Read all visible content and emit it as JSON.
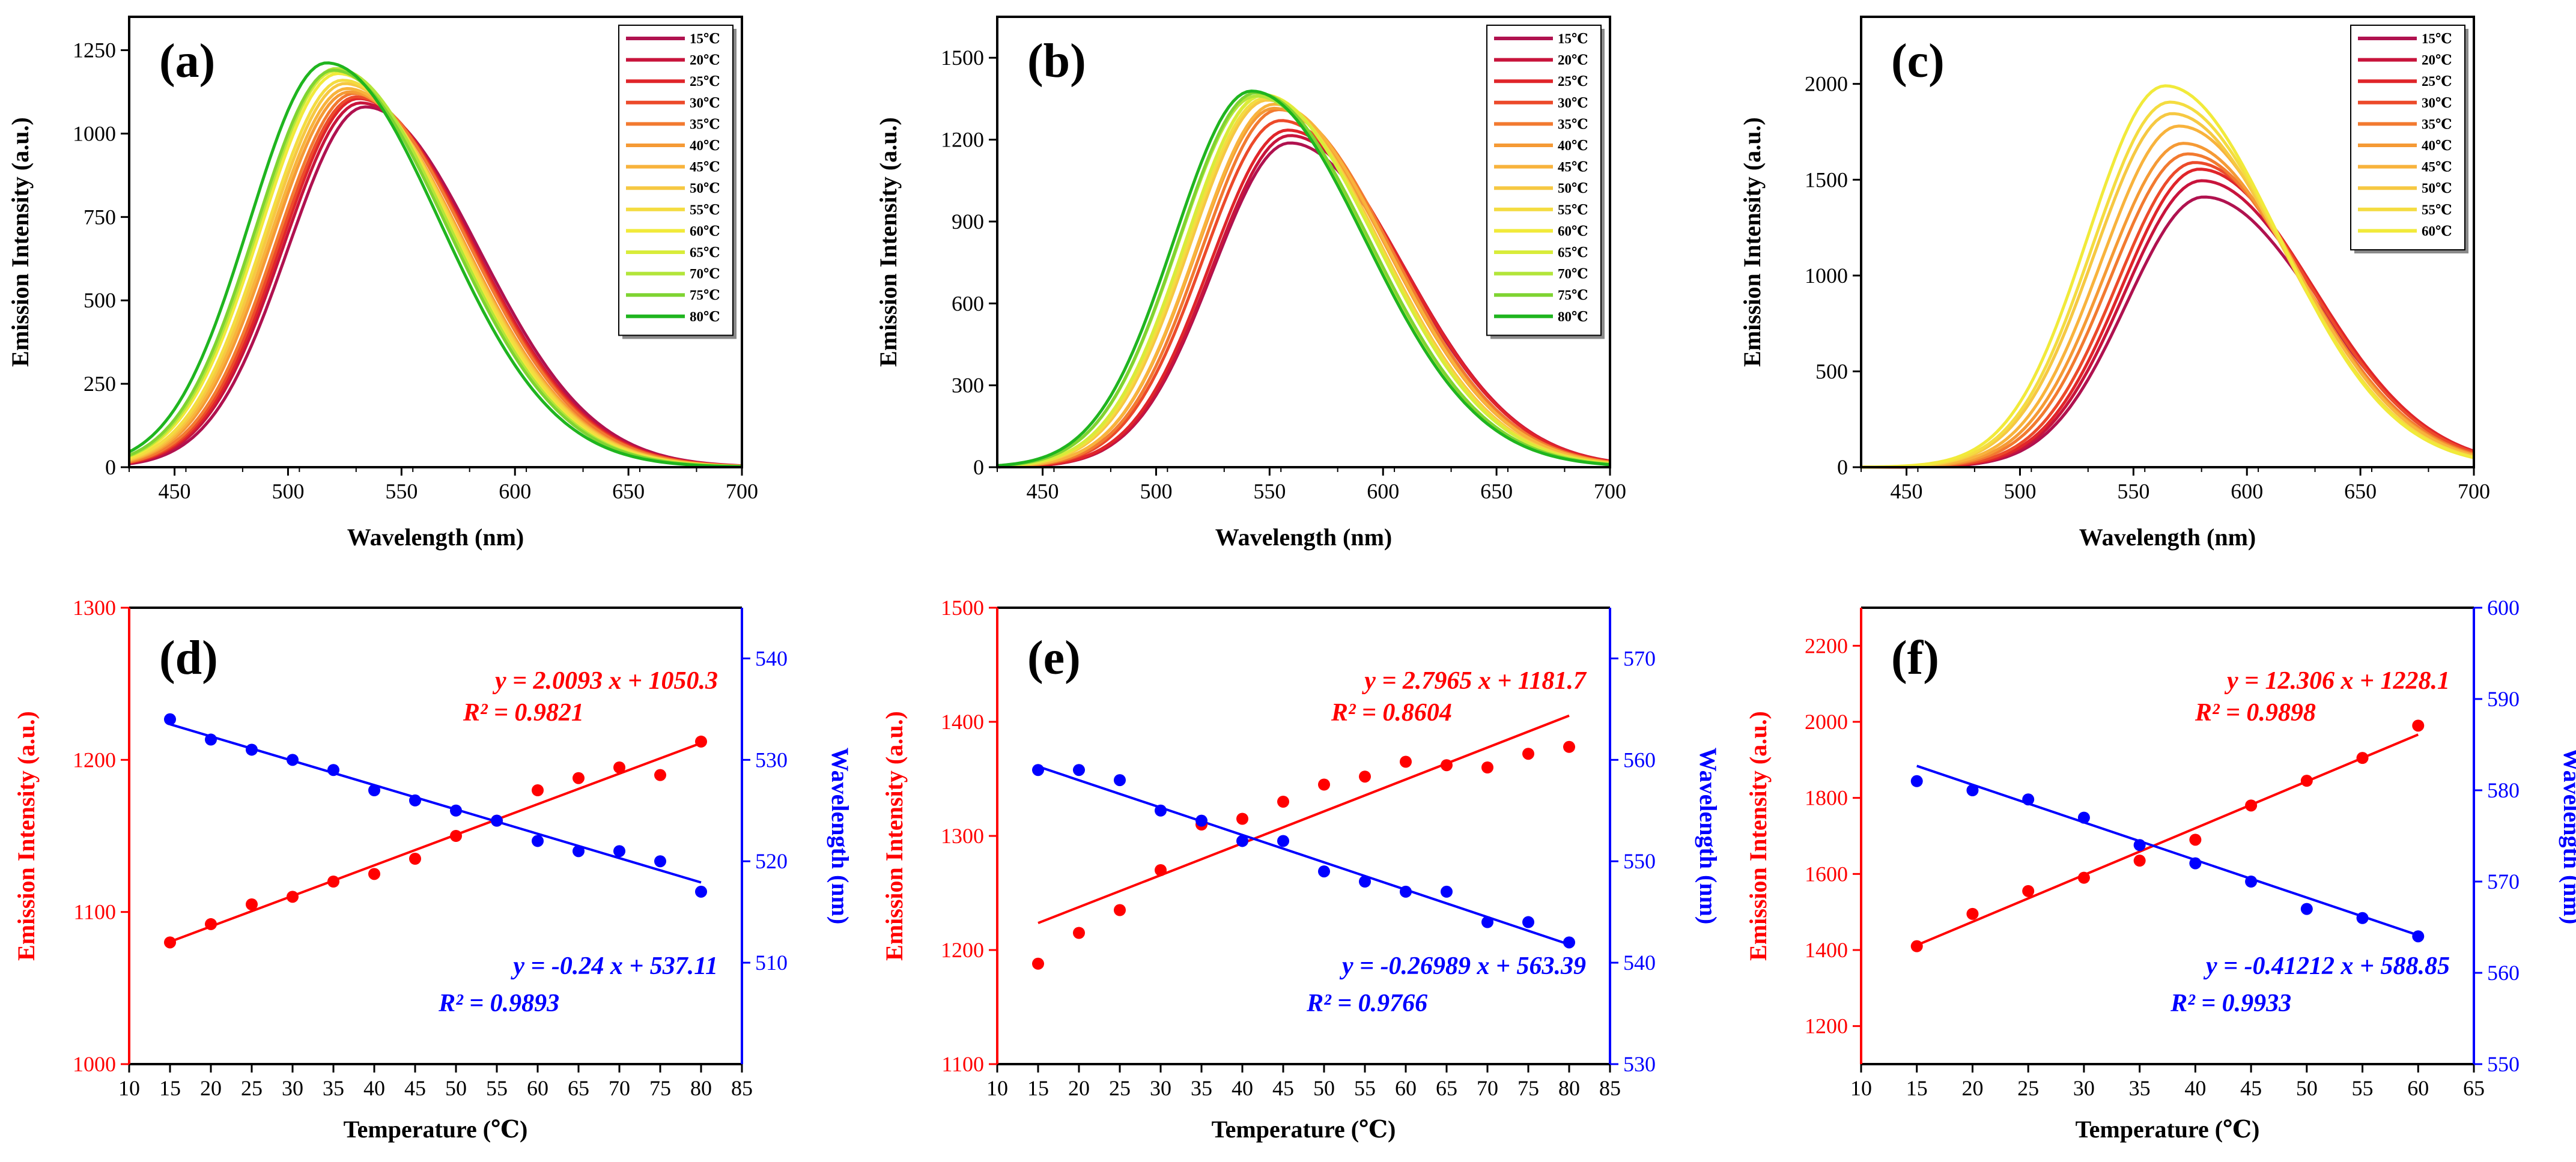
{
  "chart_data": [
    {
      "panel": "(a)",
      "type": "line",
      "xlabel": "Wavelength (nm)",
      "ylabel": "Emission Intensity (a.u.)",
      "xlim": [
        430,
        700
      ],
      "ylim": [
        0,
        1350
      ],
      "xticks": [
        450,
        500,
        550,
        600,
        650,
        700
      ],
      "yticks": [
        0,
        250,
        500,
        750,
        1000,
        1250
      ],
      "legend_position": "top-right",
      "series": [
        {
          "name": "15℃",
          "peak_x": 534,
          "peak_y": 1080,
          "color": "#b0124f"
        },
        {
          "name": "20℃",
          "peak_x": 532,
          "peak_y": 1092,
          "color": "#c8143c"
        },
        {
          "name": "25℃",
          "peak_x": 531,
          "peak_y": 1105,
          "color": "#e0252a"
        },
        {
          "name": "30℃",
          "peak_x": 530,
          "peak_y": 1110,
          "color": "#ec4a2a"
        },
        {
          "name": "35℃",
          "peak_x": 529,
          "peak_y": 1120,
          "color": "#f27a30"
        },
        {
          "name": "40℃",
          "peak_x": 527,
          "peak_y": 1125,
          "color": "#f59a35"
        },
        {
          "name": "45℃",
          "peak_x": 526,
          "peak_y": 1135,
          "color": "#f8b33c"
        },
        {
          "name": "50℃",
          "peak_x": 525,
          "peak_y": 1150,
          "color": "#f6c842"
        },
        {
          "name": "55℃",
          "peak_x": 524,
          "peak_y": 1160,
          "color": "#f4dc40"
        },
        {
          "name": "60℃",
          "peak_x": 522,
          "peak_y": 1180,
          "color": "#f1ea3a"
        },
        {
          "name": "65℃",
          "peak_x": 521,
          "peak_y": 1188,
          "color": "#d8ec3a"
        },
        {
          "name": "70℃",
          "peak_x": 521,
          "peak_y": 1195,
          "color": "#b3e53a"
        },
        {
          "name": "75℃",
          "peak_x": 520,
          "peak_y": 1190,
          "color": "#7fd432"
        },
        {
          "name": "80℃",
          "peak_x": 517,
          "peak_y": 1212,
          "color": "#1fb51f"
        }
      ]
    },
    {
      "panel": "(b)",
      "type": "line",
      "xlabel": "Wavelength (nm)",
      "ylabel": "Emission Intensity (a.u.)",
      "xlim": [
        430,
        700
      ],
      "ylim": [
        0,
        1650
      ],
      "xticks": [
        450,
        500,
        550,
        600,
        650,
        700
      ],
      "yticks": [
        0,
        300,
        600,
        900,
        1200,
        1500
      ],
      "legend_position": "top-right",
      "series": [
        {
          "name": "15℃",
          "peak_x": 559,
          "peak_y": 1188,
          "color": "#b0124f"
        },
        {
          "name": "20℃",
          "peak_x": 559,
          "peak_y": 1215,
          "color": "#c8143c"
        },
        {
          "name": "25℃",
          "peak_x": 558,
          "peak_y": 1235,
          "color": "#e0252a"
        },
        {
          "name": "30℃",
          "peak_x": 555,
          "peak_y": 1270,
          "color": "#ec4a2a"
        },
        {
          "name": "35℃",
          "peak_x": 554,
          "peak_y": 1310,
          "color": "#f27a30"
        },
        {
          "name": "40℃",
          "peak_x": 552,
          "peak_y": 1315,
          "color": "#f59a35"
        },
        {
          "name": "45℃",
          "peak_x": 552,
          "peak_y": 1330,
          "color": "#f8b33c"
        },
        {
          "name": "50℃",
          "peak_x": 549,
          "peak_y": 1345,
          "color": "#f6c842"
        },
        {
          "name": "55℃",
          "peak_x": 548,
          "peak_y": 1352,
          "color": "#f4dc40"
        },
        {
          "name": "60℃",
          "peak_x": 547,
          "peak_y": 1365,
          "color": "#f1ea3a"
        },
        {
          "name": "65℃",
          "peak_x": 547,
          "peak_y": 1362,
          "color": "#d8ec3a"
        },
        {
          "name": "70℃",
          "peak_x": 544,
          "peak_y": 1360,
          "color": "#b3e53a"
        },
        {
          "name": "75℃",
          "peak_x": 544,
          "peak_y": 1372,
          "color": "#7fd432"
        },
        {
          "name": "80℃",
          "peak_x": 542,
          "peak_y": 1378,
          "color": "#1fb51f"
        }
      ]
    },
    {
      "panel": "(c)",
      "type": "line",
      "xlabel": "Wavelength (nm)",
      "ylabel": "Emission Intensity (a.u.)",
      "xlim": [
        430,
        700
      ],
      "ylim": [
        0,
        2350
      ],
      "xticks": [
        450,
        500,
        550,
        600,
        650,
        700
      ],
      "yticks": [
        0,
        500,
        1000,
        1500,
        2000
      ],
      "legend_position": "top-right",
      "series": [
        {
          "name": "15℃",
          "peak_x": 581,
          "peak_y": 1410,
          "color": "#b0124f"
        },
        {
          "name": "20℃",
          "peak_x": 580,
          "peak_y": 1495,
          "color": "#c8143c"
        },
        {
          "name": "25℃",
          "peak_x": 579,
          "peak_y": 1555,
          "color": "#e0252a"
        },
        {
          "name": "30℃",
          "peak_x": 577,
          "peak_y": 1590,
          "color": "#ec4a2a"
        },
        {
          "name": "35℃",
          "peak_x": 574,
          "peak_y": 1635,
          "color": "#f27a30"
        },
        {
          "name": "40℃",
          "peak_x": 572,
          "peak_y": 1690,
          "color": "#f59a35"
        },
        {
          "name": "45℃",
          "peak_x": 570,
          "peak_y": 1780,
          "color": "#f8b33c"
        },
        {
          "name": "50℃",
          "peak_x": 567,
          "peak_y": 1845,
          "color": "#f6c842"
        },
        {
          "name": "55℃",
          "peak_x": 566,
          "peak_y": 1905,
          "color": "#f4dc40"
        },
        {
          "name": "60℃",
          "peak_x": 564,
          "peak_y": 1990,
          "color": "#f1ea3a"
        }
      ]
    },
    {
      "panel": "(d)",
      "type": "scatter",
      "xlabel": "Temperature (℃)",
      "ylabel_left": "Emission Intensity (a.u.)",
      "ylabel_right": "Wavelength (nm)",
      "xlim": [
        10,
        85
      ],
      "ylim_left": [
        1000,
        1300
      ],
      "ylim_right": [
        500,
        545
      ],
      "xticks": [
        10,
        15,
        20,
        25,
        30,
        35,
        40,
        45,
        50,
        55,
        60,
        65,
        70,
        75,
        80,
        85
      ],
      "yticks_left": [
        1000,
        1100,
        1200,
        1300
      ],
      "yticks_right": [
        510,
        520,
        530,
        540
      ],
      "x": [
        15,
        20,
        25,
        30,
        35,
        40,
        45,
        50,
        55,
        60,
        65,
        70,
        75,
        80
      ],
      "intensity": [
        1080,
        1092,
        1105,
        1110,
        1120,
        1125,
        1135,
        1150,
        1160,
        1180,
        1188,
        1195,
        1190,
        1212
      ],
      "wavelength": [
        534,
        532,
        531,
        530,
        529,
        527,
        526,
        525,
        524,
        522,
        521,
        521,
        520,
        517
      ],
      "fit_intensity": {
        "slope": 2.0093,
        "intercept": 1050.3,
        "equation": "y = 2.0093 x  + 1050.3",
        "r2": "R² = 0.9821"
      },
      "fit_wavelength": {
        "slope": -0.24,
        "intercept": 537.11,
        "equation": "y = -0.24 x  + 537.11",
        "r2": "R² = 0.9893"
      },
      "colors": {
        "intensity": "#ff0000",
        "wavelength": "#0000ff"
      }
    },
    {
      "panel": "(e)",
      "type": "scatter",
      "xlabel": "Temperature (℃)",
      "ylabel_left": "Emission Intensity (a.u.)",
      "ylabel_right": "Wavelength (nm)",
      "xlim": [
        10,
        85
      ],
      "ylim_left": [
        1100,
        1500
      ],
      "ylim_right": [
        530,
        575
      ],
      "xticks": [
        10,
        15,
        20,
        25,
        30,
        35,
        40,
        45,
        50,
        55,
        60,
        65,
        70,
        75,
        80,
        85
      ],
      "yticks_left": [
        1100,
        1200,
        1300,
        1400,
        1500
      ],
      "yticks_right": [
        530,
        540,
        550,
        560,
        570
      ],
      "x": [
        15,
        20,
        25,
        30,
        35,
        40,
        45,
        50,
        55,
        60,
        65,
        70,
        75,
        80
      ],
      "intensity": [
        1188,
        1215,
        1235,
        1270,
        1310,
        1315,
        1330,
        1345,
        1352,
        1365,
        1362,
        1360,
        1372,
        1378
      ],
      "wavelength": [
        559,
        559,
        558,
        555,
        554,
        552,
        552,
        549,
        548,
        547,
        547,
        544,
        544,
        542
      ],
      "fit_intensity": {
        "slope": 2.7965,
        "intercept": 1181.7,
        "equation": "y = 2.7965 x  + 1181.7",
        "r2": "R² = 0.8604"
      },
      "fit_wavelength": {
        "slope": -0.26989,
        "intercept": 563.39,
        "equation": "y = -0.26989 x  + 563.39",
        "r2": "R² = 0.9766"
      },
      "colors": {
        "intensity": "#ff0000",
        "wavelength": "#0000ff"
      }
    },
    {
      "panel": "(f)",
      "type": "scatter",
      "xlabel": "Temperature (℃)",
      "ylabel_left": "Emission Intensity (a.u.)",
      "ylabel_right": "Wavelength (nm)",
      "xlim": [
        10,
        65
      ],
      "ylim_left": [
        1100,
        2300
      ],
      "ylim_right": [
        550,
        600
      ],
      "xticks": [
        10,
        15,
        20,
        25,
        30,
        35,
        40,
        45,
        50,
        55,
        60,
        65
      ],
      "yticks_left": [
        1200,
        1400,
        1600,
        1800,
        2000,
        2200
      ],
      "yticks_right": [
        550,
        560,
        570,
        580,
        590,
        600
      ],
      "x": [
        15,
        20,
        25,
        30,
        35,
        40,
        45,
        50,
        55,
        60
      ],
      "intensity": [
        1410,
        1495,
        1555,
        1590,
        1635,
        1690,
        1780,
        1845,
        1905,
        1990
      ],
      "wavelength": [
        581,
        580,
        579,
        577,
        574,
        572,
        570,
        567,
        566,
        564
      ],
      "fit_intensity": {
        "slope": 12.306,
        "intercept": 1228.1,
        "equation": "y = 12.306 x + 1228.1",
        "r2": "R² = 0.9898"
      },
      "fit_wavelength": {
        "slope": -0.41212,
        "intercept": 588.85,
        "equation": "y = -0.41212 x  + 588.85",
        "r2": "R² = 0.9933"
      },
      "colors": {
        "intensity": "#ff0000",
        "wavelength": "#0000ff"
      }
    }
  ]
}
